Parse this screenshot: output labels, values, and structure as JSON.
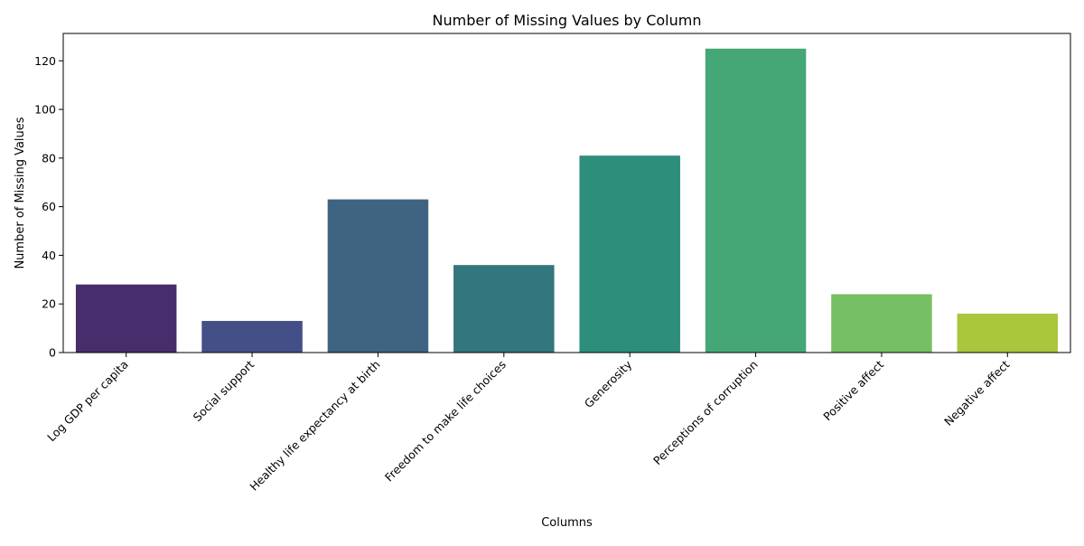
{
  "chart_data": {
    "type": "bar",
    "title": "Number of Missing Values by Column",
    "xlabel": "Columns",
    "ylabel": "Number of Missing Values",
    "categories": [
      "Log GDP per capita",
      "Social support",
      "Healthy life expectancy at birth",
      "Freedom to make life choices",
      "Generosity",
      "Perceptions of corruption",
      "Positive affect",
      "Negative affect"
    ],
    "values": [
      28,
      13,
      63,
      36,
      81,
      125,
      24,
      16
    ],
    "colors": [
      "#472d6b",
      "#444f87",
      "#3e6482",
      "#33767d",
      "#2c8e7b",
      "#45a775",
      "#77bf64",
      "#a9c63d"
    ],
    "ylim": [
      0,
      131.25
    ],
    "yticks": [
      0,
      20,
      40,
      60,
      80,
      100,
      120
    ],
    "grid": false,
    "legend": "none"
  }
}
